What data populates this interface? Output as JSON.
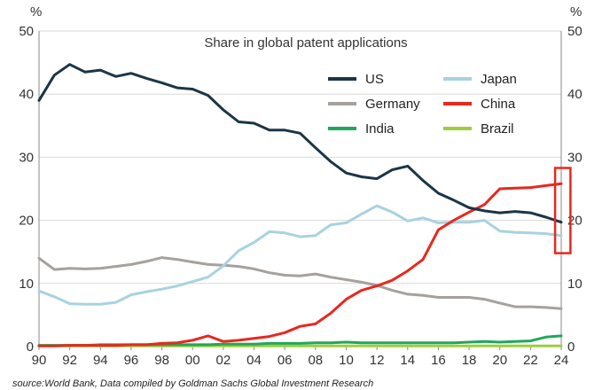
{
  "chart_data": {
    "type": "line",
    "title": "Share in global patent applications",
    "left_unit": "%",
    "right_unit": "%",
    "ylim": [
      0,
      50
    ],
    "yticks": [
      0,
      10,
      20,
      30,
      40,
      50
    ],
    "x_tick_labels": [
      "90",
      "92",
      "94",
      "96",
      "98",
      "00",
      "02",
      "04",
      "06",
      "08",
      "10",
      "12",
      "14",
      "16",
      "18",
      "20",
      "22",
      "24"
    ],
    "x": [
      1990,
      1991,
      1992,
      1993,
      1994,
      1995,
      1996,
      1997,
      1998,
      1999,
      2000,
      2001,
      2002,
      2003,
      2004,
      2005,
      2006,
      2007,
      2008,
      2009,
      2010,
      2011,
      2012,
      2013,
      2014,
      2015,
      2016,
      2017,
      2018,
      2019,
      2020,
      2021,
      2022,
      2023,
      2024
    ],
    "grid": true,
    "legend": "inside-top",
    "series": [
      {
        "name": "US",
        "color": "#1b3547",
        "values": [
          39,
          43,
          44.7,
          43.5,
          43.8,
          42.8,
          43.3,
          42.5,
          41.8,
          41,
          40.8,
          39.8,
          37.5,
          35.6,
          35.4,
          34.3,
          34.3,
          33.8,
          31.5,
          29.3,
          27.5,
          26.9,
          26.6,
          28,
          28.6,
          26.3,
          24.3,
          23.2,
          22,
          21.5,
          21.2,
          21.4,
          21.2,
          20.5,
          19.7
        ]
      },
      {
        "name": "Japan",
        "color": "#a8d2e0",
        "values": [
          8.8,
          7.9,
          6.8,
          6.7,
          6.7,
          7,
          8.2,
          8.7,
          9.1,
          9.6,
          10.3,
          11,
          12.8,
          15.2,
          16.5,
          18.2,
          18,
          17.4,
          17.6,
          19.3,
          19.6,
          21,
          22.3,
          21.3,
          19.9,
          20.4,
          19.6,
          19.7,
          19.7,
          20,
          18.3,
          18.1,
          18,
          17.9,
          17.6
        ]
      },
      {
        "name": "Germany",
        "color": "#a6a19d",
        "values": [
          14,
          12.2,
          12.4,
          12.3,
          12.4,
          12.7,
          13,
          13.5,
          14.1,
          13.8,
          13.4,
          13,
          12.9,
          12.7,
          12.3,
          11.7,
          11.3,
          11.2,
          11.5,
          11,
          10.6,
          10.2,
          9.7,
          8.9,
          8.3,
          8.1,
          7.8,
          7.8,
          7.8,
          7.5,
          6.9,
          6.3,
          6.3,
          6.2,
          6
        ]
      },
      {
        "name": "China",
        "color": "#e8281e",
        "values": [
          0.1,
          0.1,
          0.2,
          0.2,
          0.2,
          0.2,
          0.3,
          0.3,
          0.5,
          0.6,
          1,
          1.7,
          0.8,
          1,
          1.3,
          1.6,
          2.2,
          3.2,
          3.6,
          5.3,
          7.5,
          8.9,
          9.6,
          10.5,
          12,
          13.8,
          18.5,
          20,
          21.3,
          22.5,
          25,
          25.1,
          25.2,
          25.5,
          25.8
        ]
      },
      {
        "name": "India",
        "color": "#1fa85a",
        "values": [
          0.2,
          0.2,
          0.2,
          0.2,
          0.3,
          0.3,
          0.3,
          0.3,
          0.3,
          0.3,
          0.3,
          0.3,
          0.4,
          0.4,
          0.4,
          0.5,
          0.5,
          0.5,
          0.6,
          0.6,
          0.7,
          0.6,
          0.6,
          0.6,
          0.6,
          0.6,
          0.6,
          0.6,
          0.7,
          0.8,
          0.7,
          0.8,
          0.9,
          1.5,
          1.7
        ]
      },
      {
        "name": "Brazil",
        "color": "#9fce3a",
        "values": [
          0.1,
          0.1,
          0.1,
          0.1,
          0.1,
          0.1,
          0.1,
          0.1,
          0.1,
          0.1,
          0.1,
          0.1,
          0.1,
          0.1,
          0.1,
          0.1,
          0.1,
          0.1,
          0.1,
          0.1,
          0.1,
          0.1,
          0.1,
          0.1,
          0.1,
          0.1,
          0.1,
          0.1,
          0.1,
          0.1,
          0.1,
          0.1,
          0.1,
          0.1,
          0.1
        ]
      }
    ],
    "highlight": {
      "color": "#e8281e",
      "x_from": 2023.6,
      "x_to": 2024.6,
      "y_from": 14.8,
      "y_to": 28.3
    },
    "source": "source:World Bank, Data compiled by Goldman Sachs Global Investment Research"
  }
}
